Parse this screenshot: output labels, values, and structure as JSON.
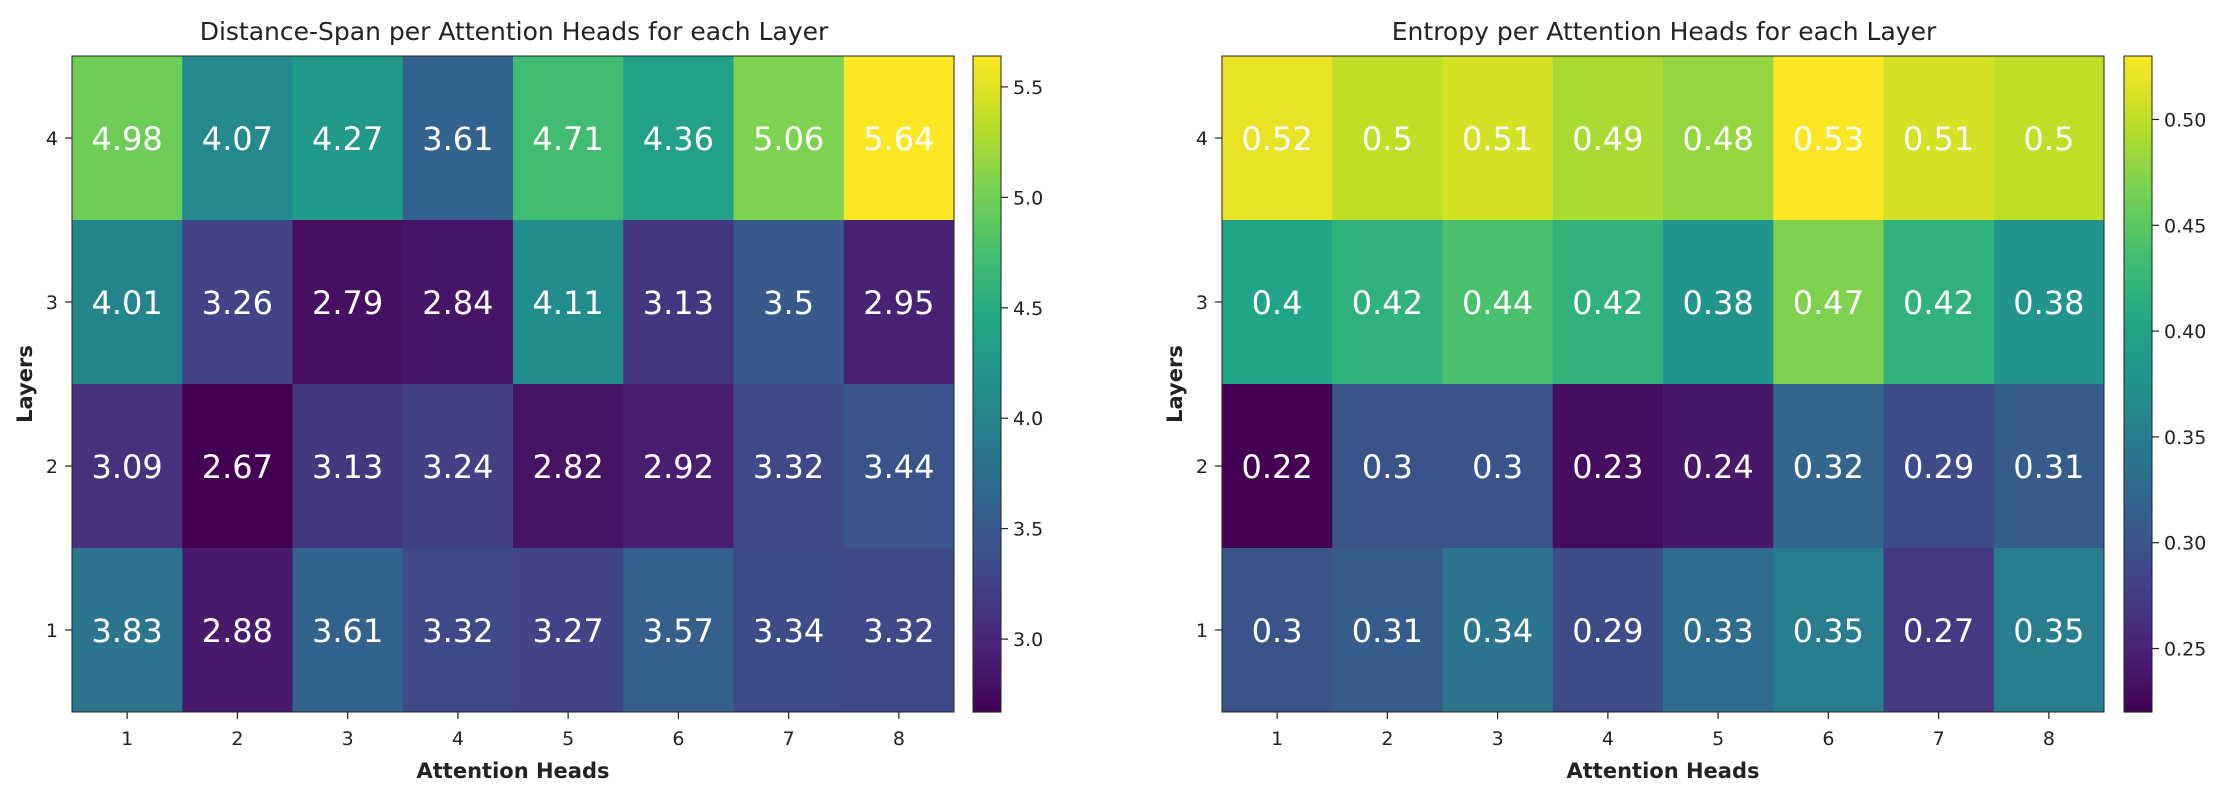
{
  "chart_data": [
    {
      "type": "heatmap",
      "title": "Distance-Span per Attention Heads for each Layer",
      "xlabel": "Attention Heads",
      "ylabel": "Layers",
      "x_categories": [
        "1",
        "2",
        "3",
        "4",
        "5",
        "6",
        "7",
        "8"
      ],
      "y_categories": [
        "4",
        "3",
        "2",
        "1"
      ],
      "values": [
        [
          4.98,
          4.07,
          4.27,
          3.61,
          4.71,
          4.36,
          5.06,
          5.64
        ],
        [
          4.01,
          3.26,
          2.79,
          2.84,
          4.11,
          3.13,
          3.5,
          2.95
        ],
        [
          3.09,
          2.67,
          3.13,
          3.24,
          2.82,
          2.92,
          3.32,
          3.44
        ],
        [
          3.83,
          2.88,
          3.61,
          3.32,
          3.27,
          3.57,
          3.34,
          3.32
        ]
      ],
      "colorscale": "viridis",
      "vmin": 2.67,
      "vmax": 5.64,
      "colorbar_ticks": [
        "3.0",
        "3.5",
        "4.0",
        "4.5",
        "5.0",
        "5.5"
      ]
    },
    {
      "type": "heatmap",
      "title": "Entropy per Attention Heads for each Layer",
      "xlabel": "Attention Heads",
      "ylabel": "Layers",
      "x_categories": [
        "1",
        "2",
        "3",
        "4",
        "5",
        "6",
        "7",
        "8"
      ],
      "y_categories": [
        "4",
        "3",
        "2",
        "1"
      ],
      "values": [
        [
          0.52,
          0.5,
          0.51,
          0.49,
          0.48,
          0.53,
          0.51,
          0.5
        ],
        [
          0.4,
          0.42,
          0.44,
          0.42,
          0.38,
          0.47,
          0.42,
          0.38
        ],
        [
          0.22,
          0.3,
          0.3,
          0.23,
          0.24,
          0.32,
          0.29,
          0.31
        ],
        [
          0.3,
          0.31,
          0.34,
          0.29,
          0.33,
          0.35,
          0.27,
          0.35
        ]
      ],
      "colorscale": "viridis",
      "vmin": 0.22,
      "vmax": 0.53,
      "colorbar_ticks": [
        "0.25",
        "0.30",
        "0.35",
        "0.40",
        "0.45",
        "0.50"
      ]
    }
  ]
}
